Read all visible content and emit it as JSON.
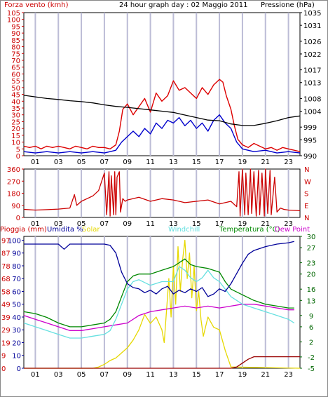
{
  "header": {
    "left_label": "Forza vento (kmh)",
    "center_title": "24 hour graph day : 02 Maggio 2011",
    "right_label": "Pressione (hPa)"
  },
  "bottom_header": {
    "rain": "Pioggia (mm)",
    "humidity": "Umidita %",
    "solar": "Solar",
    "windchill": "Windchill",
    "temperature": "Temperatura (°C)",
    "dewpoint": "Dew Point"
  },
  "colors": {
    "wind": "#dd0000",
    "gust_avg": "#0000cc",
    "pressure": "#000000",
    "direction": "#cc0000",
    "humidity": "#000099",
    "solar": "#e6d800",
    "windchill": "#66e0e0",
    "temperature": "#008800",
    "dewpoint": "#cc00cc",
    "rain": "#990000",
    "left_axis": "#cc0000",
    "right_axis": "#000000",
    "right_axis_temp": "#006600",
    "grid": "#bcbcd6"
  },
  "hour_ticks": [
    "01",
    "03",
    "05",
    "07",
    "09",
    "11",
    "13",
    "15",
    "17",
    "19",
    "21",
    "23"
  ],
  "chart_data": [
    {
      "type": "line",
      "name": "wind-pressure",
      "x_unit": "hour",
      "xlim": [
        0,
        24
      ],
      "left_axis": {
        "ticks": [
          "0",
          "5",
          "10",
          "15",
          "20",
          "25",
          "30",
          "35",
          "40",
          "45",
          "50",
          "55",
          "60",
          "65",
          "70",
          "75",
          "80",
          "85",
          "90",
          "95",
          "100",
          "105"
        ],
        "ylim": [
          0,
          105
        ]
      },
      "right_axis": {
        "ticks": [
          "990",
          "995",
          "999",
          "1004",
          "1008",
          "1013",
          "1017",
          "1022",
          "1026",
          "1031",
          "1035"
        ],
        "ylim": [
          990,
          1035
        ]
      },
      "series": [
        {
          "key": "wind_gust",
          "axis": "left",
          "x": [
            0,
            0.5,
            1,
            1.5,
            2,
            2.5,
            3,
            3.5,
            4,
            4.5,
            5,
            5.5,
            6,
            6.5,
            7,
            7.5,
            8,
            8.3,
            8.6,
            9,
            9.5,
            10,
            10.5,
            11,
            11.5,
            12,
            12.5,
            13,
            13.5,
            14,
            14.5,
            15,
            15.5,
            16,
            16.5,
            17,
            17.3,
            17.6,
            18,
            18.3,
            18.6,
            19,
            19.5,
            20,
            20.5,
            21,
            21.5,
            22,
            22.5,
            23,
            23.5,
            24
          ],
          "y": [
            7,
            6,
            7,
            5,
            7,
            6,
            7,
            6,
            5,
            7,
            6,
            5,
            7,
            6,
            6,
            5,
            8,
            18,
            34,
            38,
            30,
            36,
            42,
            32,
            46,
            40,
            44,
            55,
            48,
            50,
            46,
            42,
            50,
            45,
            52,
            56,
            54,
            44,
            34,
            22,
            12,
            8,
            6,
            9,
            7,
            5,
            6,
            4,
            6,
            5,
            4,
            3
          ]
        },
        {
          "key": "wind_avg",
          "axis": "left",
          "x": [
            0,
            1,
            2,
            3,
            4,
            5,
            6,
            7,
            7.5,
            8,
            8.5,
            9,
            9.5,
            10,
            10.5,
            11,
            11.5,
            12,
            12.5,
            13,
            13.5,
            14,
            14.5,
            15,
            15.5,
            16,
            16.5,
            17,
            17.5,
            18,
            18.5,
            19,
            20,
            21,
            22,
            23,
            24
          ],
          "y": [
            3,
            2,
            3,
            2,
            3,
            2,
            3,
            2,
            3,
            4,
            10,
            14,
            18,
            14,
            20,
            16,
            24,
            20,
            26,
            24,
            28,
            22,
            26,
            20,
            24,
            18,
            26,
            30,
            24,
            20,
            10,
            5,
            3,
            4,
            2,
            3,
            2
          ]
        },
        {
          "key": "pressure",
          "axis": "right",
          "x": [
            0,
            1,
            2,
            3,
            4,
            5,
            6,
            7,
            8,
            9,
            10,
            11,
            12,
            13,
            14,
            15,
            16,
            17,
            18,
            19,
            20,
            21,
            22,
            23,
            24
          ],
          "y": [
            1009,
            1008.5,
            1008,
            1007.7,
            1007.3,
            1007,
            1006.6,
            1006,
            1005.5,
            1005.2,
            1004.8,
            1004.4,
            1004,
            1003.6,
            1002.8,
            1002,
            1001.2,
            1001,
            1000,
            999.5,
            999.5,
            1000.2,
            1001,
            1002,
            1002.5
          ]
        }
      ]
    },
    {
      "type": "line",
      "name": "wind-direction",
      "x_unit": "hour",
      "xlim": [
        0,
        24
      ],
      "left_axis": {
        "ticks": [
          "0",
          "90",
          "180",
          "270",
          "360"
        ],
        "ylim": [
          0,
          360
        ]
      },
      "right_axis": {
        "ticks": [
          "N",
          "E",
          "S",
          "W",
          "N"
        ]
      },
      "series": [
        {
          "key": "direction",
          "x": [
            0,
            1,
            2,
            3,
            4,
            4.4,
            4.6,
            5,
            6,
            6.5,
            7,
            7.2,
            7.4,
            7.5,
            7.6,
            7.8,
            7.9,
            8,
            8.1,
            8.3,
            8.4,
            8.6,
            8.8,
            9,
            10,
            11,
            12,
            13,
            14,
            15,
            16,
            17,
            18,
            18.5,
            18.7,
            18.8,
            19,
            19.2,
            19.3,
            19.5,
            19.7,
            19.8,
            20,
            20.2,
            20.4,
            20.5,
            20.7,
            20.9,
            21,
            21.2,
            21.4,
            21.5,
            21.8,
            22,
            22.3,
            22.6,
            23,
            24
          ],
          "y": [
            60,
            55,
            58,
            62,
            70,
            170,
            90,
            120,
            160,
            200,
            330,
            20,
            340,
            10,
            310,
            20,
            340,
            20,
            300,
            340,
            40,
            140,
            120,
            130,
            150,
            120,
            140,
            130,
            110,
            120,
            130,
            100,
            120,
            80,
            340,
            10,
            360,
            20,
            330,
            20,
            360,
            30,
            340,
            10,
            350,
            20,
            330,
            10,
            360,
            30,
            350,
            20,
            300,
            40,
            70,
            60,
            55,
            50
          ]
        }
      ]
    },
    {
      "type": "line",
      "name": "rain-humidity-temperature",
      "x_unit": "hour",
      "xlim": [
        0,
        24
      ],
      "left_axis": {
        "ticks": [
          "0",
          "3",
          "6",
          "9",
          "12",
          "15",
          "18",
          "21",
          "24",
          "27",
          "30",
          "33",
          "36",
          "39",
          "42",
          "45",
          "48",
          "51",
          "54",
          "57",
          "60",
          "63",
          "66",
          "69",
          "72",
          "75",
          "78",
          "81",
          "84",
          "87",
          "90",
          "93",
          "96",
          "99",
          "100",
          "103"
        ],
        "labels_shown": [
          "0",
          "10",
          "20",
          "30",
          "40",
          "50",
          "60",
          "70",
          "80",
          "90",
          "100"
        ],
        "labels_rain": [
          "0",
          "9",
          "19",
          "29",
          "39",
          "49",
          "58",
          "68",
          "78",
          "87",
          "97"
        ],
        "ylim": [
          0,
          103
        ]
      },
      "right_axis": {
        "ticks": [
          "-5",
          "-2",
          "2",
          "6",
          "9",
          "13",
          "16",
          "20",
          "23",
          "27",
          "30"
        ],
        "ylim": [
          -5,
          30
        ]
      },
      "series": [
        {
          "key": "humidity",
          "axis": "left",
          "x": [
            0,
            1,
            2,
            3,
            3.5,
            4,
            5,
            6,
            7,
            7.5,
            8,
            8.5,
            9,
            9.5,
            10,
            10.5,
            11,
            11.5,
            12,
            12.5,
            13,
            13.5,
            14,
            14.5,
            15,
            15.5,
            16,
            16.5,
            17,
            17.5,
            18,
            18.5,
            19,
            19.5,
            20,
            21,
            22,
            23,
            23.5
          ],
          "y": [
            97,
            97,
            97,
            97,
            93,
            97,
            97,
            97,
            97,
            96,
            90,
            75,
            66,
            63,
            62,
            59,
            61,
            58,
            62,
            64,
            58,
            61,
            59,
            62,
            60,
            63,
            56,
            58,
            62,
            60,
            66,
            74,
            82,
            89,
            92,
            95,
            97,
            98,
            99
          ]
        },
        {
          "key": "windchill",
          "axis": "right",
          "x": [
            0,
            1,
            2,
            3,
            4,
            5,
            6,
            7,
            7.5,
            8,
            8.5,
            9,
            9.5,
            10,
            11,
            12,
            13,
            13.5,
            14,
            14.5,
            15,
            15.5,
            16,
            16.5,
            17,
            17.5,
            18,
            19,
            20,
            21,
            22,
            23,
            23.5
          ],
          "y": [
            7,
            6,
            5,
            4,
            3,
            3,
            3.5,
            4,
            5,
            8,
            12,
            16,
            18,
            18.5,
            17,
            18,
            18,
            22,
            21,
            19,
            18,
            19,
            21,
            19,
            18,
            16,
            14,
            12,
            11,
            10,
            9,
            8,
            7
          ]
        },
        {
          "key": "temperature",
          "axis": "right",
          "x": [
            0,
            1,
            2,
            3,
            4,
            5,
            6,
            7,
            7.5,
            8,
            8.5,
            9,
            9.5,
            10,
            11,
            12,
            13,
            13.5,
            14,
            14.5,
            15,
            16,
            17,
            17.5,
            18,
            19,
            20,
            21,
            22,
            23,
            23.5
          ],
          "y": [
            10,
            9.5,
            8.5,
            7,
            6,
            6,
            6.5,
            7,
            8,
            10,
            14,
            18,
            19.5,
            20,
            20,
            21,
            22,
            23,
            24,
            22.5,
            22,
            21.5,
            20.5,
            18,
            16,
            14.5,
            13,
            12,
            11.5,
            11,
            11
          ]
        },
        {
          "key": "dewpoint",
          "axis": "right",
          "x": [
            0,
            1,
            2,
            3,
            4,
            5,
            6,
            7,
            8,
            9,
            10,
            11,
            12,
            13,
            14,
            15,
            16,
            17,
            18,
            19,
            20,
            21,
            22,
            23,
            23.5
          ],
          "y": [
            9,
            8,
            7,
            6,
            5,
            5,
            5.5,
            6,
            6.5,
            7,
            9,
            10,
            10.5,
            11,
            11.5,
            11,
            11.5,
            11,
            11.5,
            12,
            12,
            11.5,
            11,
            10.5,
            10.5
          ]
        },
        {
          "key": "solar",
          "axis": "left",
          "x": [
            0,
            6,
            6.5,
            7,
            7.5,
            8,
            8.5,
            9,
            9.5,
            10,
            10.5,
            11,
            11.5,
            12,
            12.2,
            12.4,
            12.6,
            12.8,
            13,
            13.2,
            13.4,
            13.6,
            13.8,
            14,
            14.2,
            14.4,
            14.6,
            14.8,
            15,
            15.2,
            15.4,
            15.6,
            16,
            16.5,
            17,
            17.5,
            18,
            24
          ],
          "y": [
            0,
            0,
            1,
            3,
            6,
            8,
            12,
            16,
            22,
            30,
            42,
            35,
            40,
            30,
            20,
            45,
            70,
            40,
            80,
            50,
            95,
            60,
            85,
            100,
            70,
            90,
            55,
            80,
            45,
            60,
            38,
            25,
            40,
            32,
            30,
            14,
            1,
            0
          ]
        },
        {
          "key": "rain",
          "axis": "left",
          "x": [
            0,
            18,
            18.5,
            19,
            19.5,
            20,
            24
          ],
          "y": [
            0,
            0,
            1,
            4,
            7,
            9,
            9
          ]
        }
      ]
    }
  ]
}
